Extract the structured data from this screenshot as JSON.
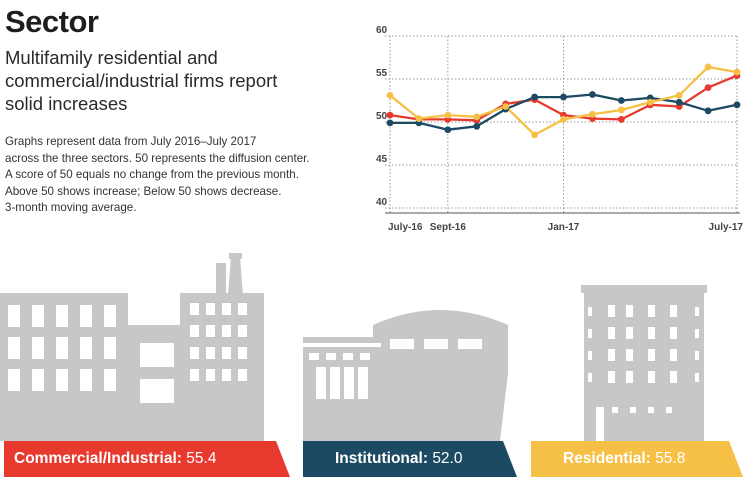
{
  "header": {
    "title": "Sector",
    "subtitle_lines": [
      "Multifamily residential and",
      "commercial/industrial firms report",
      "solid increases"
    ]
  },
  "description_lines": [
    "Graphs represent data from July 2016–July 2017",
    "across the three sectors. 50 represents the diffusion center.",
    "A score of 50 equals no change from the previous month.",
    "Above 50 shows increase; Below 50 shows decrease.",
    "3-month moving average."
  ],
  "chart_data": {
    "type": "line",
    "x": [
      "July-16",
      "Aug-16",
      "Sept-16",
      "Oct-16",
      "Nov-16",
      "Dec-16",
      "Jan-17",
      "Feb-17",
      "Mar-17",
      "Apr-17",
      "May-17",
      "June-17",
      "July-17"
    ],
    "x_tick_labels": [
      "July-16",
      "Sept-16",
      "Jan-17",
      "July-17"
    ],
    "y_tick_labels": [
      "40",
      "45",
      "50",
      "55",
      "60"
    ],
    "ylim": [
      40,
      60
    ],
    "grid": "horizontal dotted at y ticks, vertical dotted at x ticks",
    "series": [
      {
        "key": "commercial_industrial",
        "color": "#e8392f",
        "values": [
          50.8,
          50.3,
          50.3,
          50.2,
          52.1,
          52.6,
          50.8,
          50.4,
          50.3,
          52.0,
          51.8,
          54.0,
          55.4
        ]
      },
      {
        "key": "institutional",
        "color": "#1c4a63",
        "values": [
          49.9,
          49.9,
          49.1,
          49.5,
          51.5,
          52.9,
          52.9,
          53.2,
          52.5,
          52.8,
          52.3,
          51.3,
          52.0
        ]
      },
      {
        "key": "residential",
        "color": "#f6c046",
        "values": [
          53.1,
          50.4,
          50.8,
          50.6,
          51.8,
          48.5,
          50.3,
          50.9,
          51.4,
          52.3,
          53.1,
          56.4,
          55.8
        ]
      }
    ]
  },
  "sectors": [
    {
      "label": "Commercial/Industrial:",
      "value": "55.4",
      "color": "#e8392f"
    },
    {
      "label": "Institutional:",
      "value": "52.0",
      "color": "#1c4a63"
    },
    {
      "label": "Residential:",
      "value": "55.8",
      "color": "#f6c046"
    }
  ],
  "illustration_color": "#c7c7c7"
}
